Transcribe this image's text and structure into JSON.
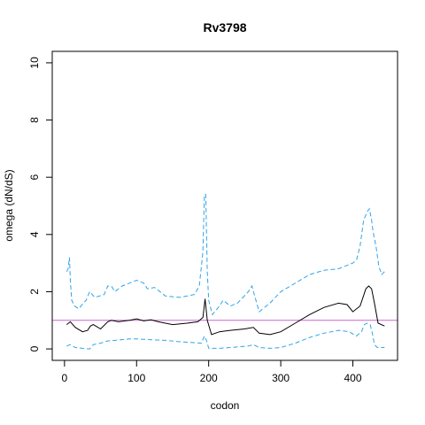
{
  "chart_data": {
    "type": "line",
    "title": "Rv3798",
    "xlabel": "codon",
    "ylabel": "omega (dN/dS)",
    "xlim": [
      -17,
      462
    ],
    "ylim": [
      -0.4,
      10.4
    ],
    "x_ticks": [
      0,
      100,
      200,
      300,
      400
    ],
    "y_ticks": [
      0,
      2,
      4,
      6,
      8,
      10
    ],
    "reference_line": {
      "y": 1,
      "color": "#cc66cc"
    },
    "series": [
      {
        "role": "estimate",
        "style": "solid",
        "color": "#000000",
        "x": [
          3,
          8,
          15,
          25,
          32,
          36,
          40,
          50,
          60,
          65,
          75,
          90,
          100,
          110,
          120,
          130,
          150,
          170,
          185,
          192,
          195,
          198,
          204,
          215,
          230,
          250,
          262,
          270,
          285,
          300,
          320,
          340,
          360,
          380,
          392,
          400,
          410,
          418,
          422,
          426,
          430,
          435,
          444
        ],
        "y": [
          0.85,
          0.95,
          0.75,
          0.6,
          0.65,
          0.8,
          0.85,
          0.7,
          0.95,
          1.0,
          0.95,
          1.0,
          1.05,
          0.98,
          1.02,
          0.95,
          0.85,
          0.9,
          0.95,
          1.1,
          1.75,
          1.0,
          0.5,
          0.6,
          0.65,
          0.7,
          0.75,
          0.55,
          0.5,
          0.6,
          0.9,
          1.2,
          1.45,
          1.6,
          1.55,
          1.3,
          1.5,
          2.1,
          2.2,
          2.1,
          1.6,
          0.9,
          0.8
        ]
      },
      {
        "role": "upper",
        "style": "dashed",
        "color": "#2fa4e7",
        "x": [
          3,
          5,
          7,
          8,
          10,
          14,
          20,
          26,
          30,
          35,
          42,
          55,
          60,
          65,
          70,
          80,
          90,
          100,
          110,
          115,
          125,
          140,
          160,
          180,
          187,
          192,
          194,
          196,
          198,
          200,
          205,
          215,
          220,
          230,
          240,
          255,
          260,
          270,
          285,
          300,
          320,
          340,
          360,
          380,
          400,
          405,
          410,
          415,
          420,
          423,
          426,
          428,
          432,
          436,
          440,
          444
        ],
        "y": [
          2.7,
          2.8,
          3.2,
          2.4,
          1.7,
          1.5,
          1.4,
          1.6,
          1.7,
          2.0,
          1.8,
          1.9,
          2.2,
          2.2,
          2.0,
          2.2,
          2.3,
          2.4,
          2.3,
          2.1,
          2.15,
          1.85,
          1.8,
          1.9,
          2.2,
          3.4,
          5.4,
          5.4,
          2.7,
          1.7,
          1.2,
          1.5,
          1.7,
          1.5,
          1.6,
          2.0,
          2.2,
          1.3,
          1.6,
          2.0,
          2.3,
          2.6,
          2.75,
          2.8,
          3.0,
          3.1,
          3.6,
          4.5,
          4.8,
          4.9,
          4.5,
          4.1,
          3.6,
          2.9,
          2.6,
          2.7
        ]
      },
      {
        "role": "lower",
        "style": "dashed",
        "color": "#2fa4e7",
        "x": [
          3,
          8,
          15,
          25,
          35,
          40,
          50,
          60,
          70,
          90,
          100,
          120,
          140,
          160,
          180,
          190,
          194,
          197,
          200,
          215,
          230,
          255,
          262,
          270,
          285,
          300,
          320,
          340,
          360,
          380,
          395,
          405,
          412,
          416,
          420,
          424,
          427,
          430,
          434,
          444
        ],
        "y": [
          0.1,
          0.15,
          0.05,
          0.02,
          0.0,
          0.15,
          0.2,
          0.28,
          0.3,
          0.35,
          0.35,
          0.32,
          0.3,
          0.25,
          0.22,
          0.2,
          0.45,
          0.3,
          0.02,
          0.02,
          0.05,
          0.1,
          0.15,
          0.05,
          0.02,
          0.05,
          0.2,
          0.4,
          0.55,
          0.65,
          0.6,
          0.45,
          0.6,
          0.85,
          0.9,
          0.85,
          0.55,
          0.15,
          0.05,
          0.05
        ]
      }
    ]
  }
}
